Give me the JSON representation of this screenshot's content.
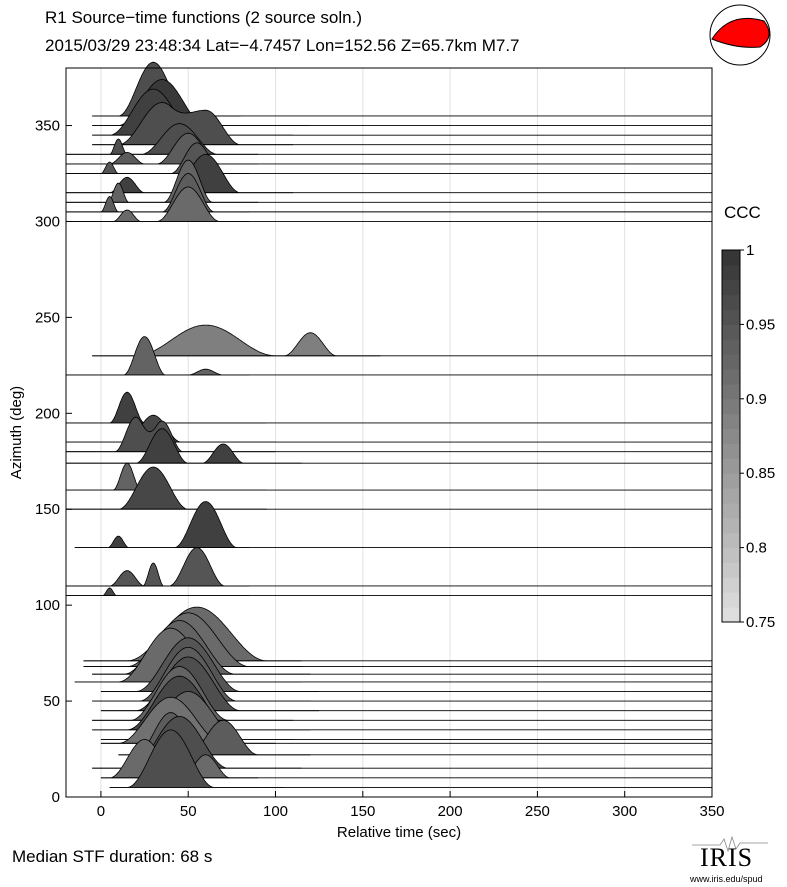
{
  "header": {
    "title": "R1 Source−time functions (2 source soln.)",
    "subtitle": "2015/03/29 23:48:34  Lat=−4.7457 Lon=152.56  Z=65.7km  M7.7"
  },
  "footer": {
    "median": "Median STF duration: 68 s",
    "logo_text": "IRIS",
    "logo_url": "www.iris.edu/spud"
  },
  "beachball": {
    "compression_color": "#ff0000",
    "dilatation_color": "#ffffff"
  },
  "chart_data": {
    "type": "area",
    "xlabel": "Relative time (sec)",
    "ylabel": "Azimuth (deg)",
    "xlim": [
      -20,
      350
    ],
    "ylim": [
      0,
      380
    ],
    "xticks": [
      "0",
      "50",
      "100",
      "150",
      "200",
      "250",
      "300",
      "350"
    ],
    "yticks": [
      "0",
      "50",
      "100",
      "150",
      "200",
      "250",
      "300",
      "350"
    ],
    "colorbar": {
      "label": "CCC",
      "range": [
        0.75,
        1.0
      ],
      "ticks": [
        "1",
        "0.95",
        "0.9",
        "0.85",
        "0.8",
        "0.75"
      ]
    },
    "traces": [
      {
        "az": 5,
        "ccc": 0.96,
        "t0": 5,
        "t1": 105,
        "bumps": [
          [
            40,
            25,
            30
          ]
        ]
      },
      {
        "az": 10,
        "ccc": 0.92,
        "t0": 0,
        "t1": 90,
        "bumps": [
          [
            25,
            20,
            20
          ],
          [
            60,
            14,
            12
          ]
        ]
      },
      {
        "az": 15,
        "ccc": 0.96,
        "t0": -5,
        "t1": 115,
        "bumps": [
          [
            45,
            28,
            27
          ]
        ]
      },
      {
        "az": 22,
        "ccc": 0.94,
        "t0": 10,
        "t1": 120,
        "bumps": [
          [
            40,
            20,
            22
          ],
          [
            70,
            20,
            18
          ]
        ]
      },
      {
        "az": 28,
        "ccc": 0.91,
        "t0": 0,
        "t1": 100,
        "bumps": [
          [
            40,
            30,
            24
          ]
        ]
      },
      {
        "az": 30,
        "ccc": 0.93,
        "t0": 0,
        "t1": 110,
        "bumps": [
          [
            50,
            30,
            25
          ]
        ]
      },
      {
        "az": 35,
        "ccc": 0.97,
        "t0": -5,
        "t1": 120,
        "bumps": [
          [
            45,
            30,
            28
          ]
        ]
      },
      {
        "az": 40,
        "ccc": 0.93,
        "t0": -5,
        "t1": 110,
        "bumps": [
          [
            45,
            28,
            28
          ]
        ]
      },
      {
        "az": 45,
        "ccc": 0.96,
        "t0": 0,
        "t1": 125,
        "bumps": [
          [
            50,
            30,
            28
          ]
        ]
      },
      {
        "az": 50,
        "ccc": 0.94,
        "t0": -5,
        "t1": 120,
        "bumps": [
          [
            50,
            28,
            28
          ]
        ]
      },
      {
        "az": 55,
        "ccc": 0.95,
        "t0": 0,
        "t1": 125,
        "bumps": [
          [
            50,
            30,
            28
          ]
        ]
      },
      {
        "az": 60,
        "ccc": 0.92,
        "t0": -15,
        "t1": 115,
        "bumps": [
          [
            40,
            30,
            28
          ]
        ]
      },
      {
        "az": 64,
        "ccc": 0.93,
        "t0": -5,
        "t1": 120,
        "bumps": [
          [
            45,
            32,
            28
          ]
        ]
      },
      {
        "az": 68,
        "ccc": 0.92,
        "t0": -10,
        "t1": 115,
        "bumps": [
          [
            50,
            35,
            28
          ]
        ]
      },
      {
        "az": 71,
        "ccc": 0.92,
        "t0": -10,
        "t1": 115,
        "bumps": [
          [
            55,
            40,
            28
          ]
        ]
      },
      {
        "az": 105,
        "ccc": 0.97,
        "t0": -20,
        "t1": 85,
        "bumps": [
          [
            5,
            4,
            4
          ]
        ]
      },
      {
        "az": 110,
        "ccc": 0.95,
        "t0": -20,
        "t1": 85,
        "bumps": [
          [
            15,
            10,
            8
          ],
          [
            30,
            6,
            12
          ],
          [
            55,
            16,
            20
          ]
        ]
      },
      {
        "az": 130,
        "ccc": 0.98,
        "t0": -15,
        "t1": 85,
        "bumps": [
          [
            10,
            6,
            6
          ],
          [
            60,
            18,
            24
          ]
        ]
      },
      {
        "az": 150,
        "ccc": 0.97,
        "t0": -20,
        "t1": 95,
        "bumps": [
          [
            30,
            20,
            22
          ]
        ]
      },
      {
        "az": 160,
        "ccc": 0.93,
        "t0": -20,
        "t1": 95,
        "bumps": [
          [
            15,
            8,
            14
          ]
        ]
      },
      {
        "az": 174,
        "ccc": 0.98,
        "t0": -20,
        "t1": 115,
        "bumps": [
          [
            35,
            15,
            18
          ],
          [
            70,
            12,
            10
          ]
        ]
      },
      {
        "az": 180,
        "ccc": 0.96,
        "t0": -20,
        "t1": 100,
        "bumps": [
          [
            20,
            12,
            18
          ],
          [
            35,
            12,
            16
          ]
        ]
      },
      {
        "az": 185,
        "ccc": 0.97,
        "t0": -20,
        "t1": 100,
        "bumps": [
          [
            30,
            16,
            14
          ]
        ]
      },
      {
        "az": 195,
        "ccc": 0.98,
        "t0": -20,
        "t1": 95,
        "bumps": [
          [
            15,
            10,
            16
          ]
        ]
      },
      {
        "az": 220,
        "ccc": 0.93,
        "t0": -20,
        "t1": 85,
        "bumps": [
          [
            25,
            12,
            20
          ],
          [
            60,
            10,
            3
          ]
        ]
      },
      {
        "az": 230,
        "ccc": 0.89,
        "t0": -5,
        "t1": 160,
        "bumps": [
          [
            60,
            40,
            16
          ],
          [
            120,
            15,
            12
          ]
        ]
      },
      {
        "az": 300,
        "ccc": 0.92,
        "t0": -20,
        "t1": 85,
        "bumps": [
          [
            15,
            8,
            6
          ],
          [
            50,
            18,
            18
          ]
        ]
      },
      {
        "az": 305,
        "ccc": 0.94,
        "t0": -20,
        "t1": 85,
        "bumps": [
          [
            5,
            5,
            8
          ],
          [
            50,
            15,
            20
          ]
        ]
      },
      {
        "az": 310,
        "ccc": 0.93,
        "t0": -20,
        "t1": 90,
        "bumps": [
          [
            10,
            6,
            10
          ],
          [
            50,
            14,
            22
          ]
        ]
      },
      {
        "az": 315,
        "ccc": 0.98,
        "t0": -20,
        "t1": 110,
        "bumps": [
          [
            15,
            10,
            8
          ],
          [
            60,
            20,
            20
          ]
        ]
      },
      {
        "az": 325,
        "ccc": 0.95,
        "t0": -20,
        "t1": 85,
        "bumps": [
          [
            5,
            5,
            6
          ],
          [
            55,
            15,
            16
          ]
        ]
      },
      {
        "az": 330,
        "ccc": 0.94,
        "t0": -20,
        "t1": 90,
        "bumps": [
          [
            15,
            10,
            6
          ],
          [
            50,
            18,
            16
          ]
        ]
      },
      {
        "az": 335,
        "ccc": 0.96,
        "t0": -20,
        "t1": 90,
        "bumps": [
          [
            10,
            5,
            8
          ],
          [
            45,
            22,
            16
          ]
        ]
      },
      {
        "az": 340,
        "ccc": 0.96,
        "t0": -5,
        "t1": 110,
        "bumps": [
          [
            35,
            25,
            22
          ],
          [
            60,
            20,
            18
          ]
        ]
      },
      {
        "az": 345,
        "ccc": 0.98,
        "t0": -5,
        "t1": 110,
        "bumps": [
          [
            30,
            25,
            24
          ]
        ]
      },
      {
        "az": 350,
        "ccc": 0.99,
        "t0": -5,
        "t1": 120,
        "bumps": [
          [
            35,
            25,
            24
          ]
        ]
      },
      {
        "az": 355,
        "ccc": 0.96,
        "t0": -5,
        "t1": 80,
        "bumps": [
          [
            30,
            20,
            28
          ]
        ]
      }
    ]
  }
}
